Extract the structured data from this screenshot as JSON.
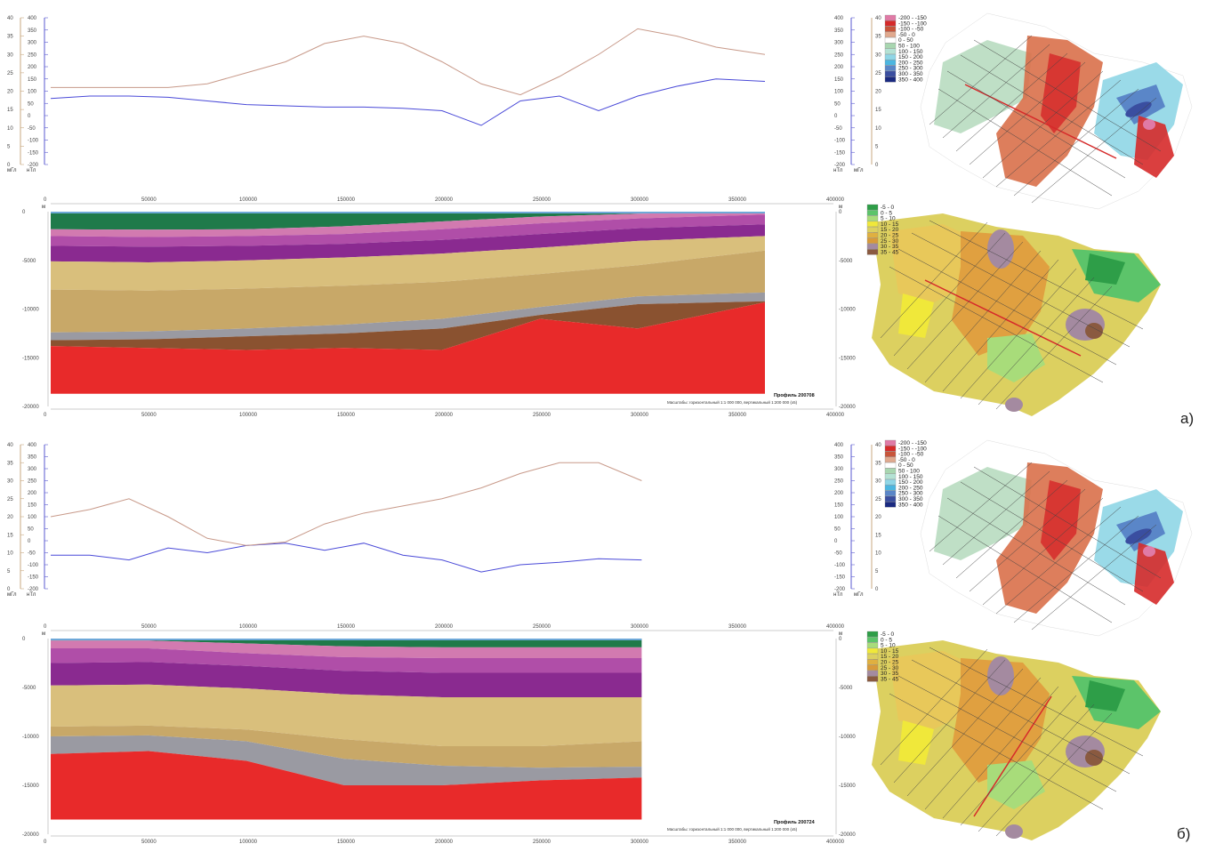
{
  "panels": [
    {
      "label": "а)",
      "profile_name": "Профиль 200708",
      "scale_text": "Масштабы: горизонтальный 1:1 000 000, вертикальный 1:200 000 (x5)",
      "length": 365000
    },
    {
      "label": "б)",
      "profile_name": "Профиль 200724",
      "scale_text": "Масштабы: горизонтальный 1:1 000 000, вертикальный 1:200 000 (x5)",
      "length": 302000
    }
  ],
  "axes": {
    "x_ticks": [
      "0",
      "50000",
      "100000",
      "150000",
      "200000",
      "250000",
      "300000",
      "350000",
      "400000"
    ],
    "depth_ticks": [
      "0",
      "-5000",
      "-10000",
      "-15000",
      "-20000"
    ],
    "depth_unit": "м",
    "mgal_ticks": [
      "40",
      "35",
      "30",
      "25",
      "20",
      "15",
      "10",
      "5",
      "0"
    ],
    "nt_ticks": [
      "400",
      "350",
      "300",
      "250",
      "200",
      "150",
      "100",
      "50",
      "0",
      "-50",
      "-100",
      "-150",
      "-200"
    ],
    "mgal_unit": "мГл",
    "nt_unit": "нТл"
  },
  "magnetic_legend": {
    "items": [
      {
        "label": "-200 - -150",
        "color": "#e07aa6"
      },
      {
        "label": "-150 - -100",
        "color": "#d62a2a"
      },
      {
        "label": "-100 - -50",
        "color": "#c8553a"
      },
      {
        "label": "-50 - 0",
        "color": "#e0a98e"
      },
      {
        "label": "0 - 50",
        "color": "#ffffff"
      },
      {
        "label": "50 - 100",
        "color": "#a8d6b0"
      },
      {
        "label": "100 - 150",
        "color": "#b4e2d4"
      },
      {
        "label": "150 - 200",
        "color": "#8fd6e6"
      },
      {
        "label": "200 - 250",
        "color": "#4cb6e0"
      },
      {
        "label": "250 - 300",
        "color": "#5a86c8"
      },
      {
        "label": "300 - 350",
        "color": "#3a4ea0"
      },
      {
        "label": "350 - 400",
        "color": "#1a2a80"
      }
    ]
  },
  "depth_legend": {
    "items": [
      {
        "label": "-5 - 0",
        "color": "#2e9e48"
      },
      {
        "label": "0 - 5",
        "color": "#5cc46a"
      },
      {
        "label": "5 - 10",
        "color": "#a8dc7a"
      },
      {
        "label": "10 - 15",
        "color": "#f0e83a"
      },
      {
        "label": "15 - 20",
        "color": "#dcd060"
      },
      {
        "label": "20 - 25",
        "color": "#e0b040"
      },
      {
        "label": "25 - 30",
        "color": "#d89a3a"
      },
      {
        "label": "30 - 35",
        "color": "#a48aa0"
      },
      {
        "label": "35 - 45",
        "color": "#8a5a40"
      }
    ]
  },
  "layer_colors": [
    "#6ec08a",
    "#1f7a4a",
    "#d27ab0",
    "#b04ea8",
    "#8a2a90",
    "#d9bf7c",
    "#c8a868",
    "#9a9aa2",
    "#8a5230",
    "#1f9a72",
    "#e82a2a"
  ],
  "chart_data": [
    {
      "type": "line",
      "title": "",
      "x": [
        0,
        20000,
        40000,
        60000,
        80000,
        100000,
        120000,
        140000,
        160000,
        180000,
        200000,
        220000,
        240000,
        260000,
        280000,
        300000,
        320000,
        340000,
        365000
      ],
      "series": [
        {
          "values": [
            70,
            80,
            80,
            75,
            60,
            45,
            40,
            35,
            35,
            30,
            20,
            -40,
            60,
            80,
            20,
            80,
            120,
            150,
            140
          ],
          "color": "#4a4ad8"
        },
        {
          "values": [
            21,
            21,
            21,
            21,
            22,
            25,
            28,
            33,
            35,
            33,
            28,
            22,
            19,
            24,
            30,
            37,
            35,
            32,
            30
          ],
          "color": "#c89a8a"
        }
      ]
    },
    {
      "type": "area",
      "title": "",
      "x": [
        0,
        50000,
        100000,
        150000,
        200000,
        250000,
        300000,
        365000
      ],
      "series": [
        {
          "values": [
            -1800,
            -1850,
            -1800,
            -1500,
            -1000,
            -500,
            -200,
            0
          ]
        },
        {
          "values": [
            -2500,
            -2600,
            -2500,
            -2300,
            -1800,
            -1200,
            -700,
            -300
          ]
        },
        {
          "values": [
            -3500,
            -3600,
            -3500,
            -3300,
            -2900,
            -2300,
            -1700,
            -1300
          ]
        },
        {
          "values": [
            -5100,
            -5200,
            -5000,
            -4700,
            -4300,
            -3700,
            -3000,
            -2500
          ]
        },
        {
          "values": [
            -8000,
            -8100,
            -7900,
            -7600,
            -7200,
            -6400,
            -5500,
            -4000
          ]
        },
        {
          "values": [
            -12400,
            -12300,
            -12000,
            -11600,
            -11000,
            -9800,
            -8700,
            -8300
          ]
        },
        {
          "values": [
            -13200,
            -13100,
            -12800,
            -12500,
            -12000,
            -10600,
            -9500,
            -9200
          ]
        },
        {
          "values": [
            -13800,
            -14000,
            -14200,
            -14000,
            -14200,
            -11000,
            -12000,
            -9300
          ]
        },
        {
          "values": [
            -18700,
            -18700,
            -18700,
            -18700,
            -18700,
            -18700,
            -18700,
            -18700
          ]
        }
      ]
    },
    {
      "type": "line",
      "title": "",
      "x": [
        0,
        20000,
        40000,
        60000,
        80000,
        100000,
        120000,
        140000,
        160000,
        180000,
        200000,
        220000,
        240000,
        260000,
        280000,
        302000
      ],
      "series": [
        {
          "values": [
            -60,
            -60,
            -80,
            -30,
            -50,
            -20,
            -10,
            -40,
            -10,
            -60,
            -80,
            -130,
            -100,
            -90,
            -75,
            -80
          ],
          "color": "#4a4ad8"
        },
        {
          "values": [
            20,
            22,
            25,
            20,
            14,
            12,
            13,
            18,
            21,
            23,
            25,
            28,
            32,
            35,
            35,
            30
          ],
          "color": "#c89a8a"
        }
      ]
    },
    {
      "type": "area",
      "title": "",
      "x": [
        0,
        50000,
        100000,
        150000,
        200000,
        250000,
        302000
      ],
      "series": [
        {
          "values": [
            -200,
            -200,
            -500,
            -800,
            -900,
            -900,
            -900
          ]
        },
        {
          "values": [
            -1000,
            -1000,
            -1500,
            -1900,
            -2000,
            -2000,
            -2000
          ]
        },
        {
          "values": [
            -2500,
            -2400,
            -2800,
            -3300,
            -3500,
            -3500,
            -3500
          ]
        },
        {
          "values": [
            -4800,
            -4700,
            -5100,
            -5700,
            -6000,
            -6000,
            -6000
          ]
        },
        {
          "values": [
            -9000,
            -8900,
            -9300,
            -10300,
            -11000,
            -11000,
            -10500
          ]
        },
        {
          "values": [
            -10000,
            -9900,
            -10500,
            -12300,
            -13000,
            -13200,
            -13100
          ]
        },
        {
          "values": [
            -11800,
            -11500,
            -12500,
            -15000,
            -15000,
            -14500,
            -14200
          ]
        },
        {
          "values": [
            -18500,
            -18500,
            -18500,
            -18500,
            -18500,
            -18500,
            -18500
          ]
        }
      ]
    }
  ]
}
